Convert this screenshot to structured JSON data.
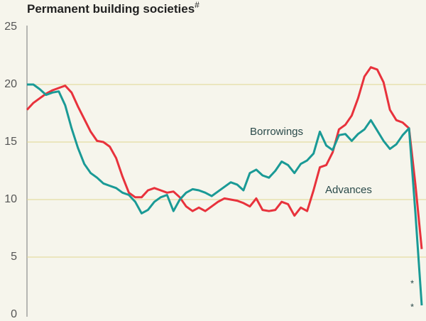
{
  "chart_data": {
    "type": "line",
    "title": "Permanent building societies",
    "title_note": "#",
    "x": [
      0,
      1,
      2,
      3,
      4,
      5,
      6,
      7,
      8,
      9,
      10,
      11,
      12,
      13,
      14,
      15,
      16,
      17,
      18,
      19,
      20,
      21,
      22,
      23,
      24,
      25,
      26,
      27,
      28,
      29,
      30,
      31,
      32,
      33,
      34,
      35,
      36,
      37,
      38,
      39,
      40,
      41,
      42,
      43,
      44,
      45,
      46,
      47,
      48,
      49,
      50,
      51,
      52,
      53,
      54,
      55,
      56,
      57,
      58,
      59,
      60,
      61,
      62
    ],
    "series": [
      {
        "name": "Borrowings",
        "color": "#1a9a96",
        "values": [
          20,
          20,
          19.6,
          19.1,
          19.3,
          19.4,
          18.2,
          16.2,
          14.5,
          13.1,
          12.3,
          11.9,
          11.4,
          11.2,
          11.0,
          10.6,
          10.4,
          9.8,
          8.8,
          9.1,
          9.8,
          10.2,
          10.4,
          9.0,
          10.0,
          10.6,
          10.9,
          10.8,
          10.6,
          10.3,
          10.7,
          11.1,
          11.5,
          11.3,
          10.8,
          12.3,
          12.6,
          12.1,
          11.9,
          12.5,
          13.3,
          13.0,
          12.3,
          13.1,
          13.4,
          14.0,
          15.9,
          14.7,
          14.3,
          15.6,
          15.7,
          15.1,
          15.7,
          16.1,
          16.9,
          16.0,
          15.1,
          14.4,
          14.8,
          15.6,
          16.2,
          8.8,
          0.8
        ]
      },
      {
        "name": "Advances",
        "color": "#e8323c",
        "values": [
          17.8,
          18.4,
          18.8,
          19.2,
          19.5,
          19.7,
          19.9,
          19.3,
          18.1,
          17.0,
          15.9,
          15.1,
          15.0,
          14.6,
          13.6,
          12.0,
          10.6,
          10.2,
          10.2,
          10.8,
          11.0,
          10.8,
          10.6,
          10.7,
          10.2,
          9.4,
          9.0,
          9.3,
          9.0,
          9.4,
          9.8,
          10.1,
          10.0,
          9.9,
          9.7,
          9.4,
          10.1,
          9.1,
          9.0,
          9.1,
          9.8,
          9.6,
          8.6,
          9.3,
          9.0,
          10.8,
          12.8,
          13.0,
          14.1,
          16.1,
          16.5,
          17.3,
          18.8,
          20.7,
          21.5,
          21.3,
          20.2,
          17.8,
          16.9,
          16.7,
          16.2,
          11.3,
          5.7
        ]
      }
    ],
    "annotations": [
      "*",
      "*"
    ],
    "xlim": [
      0,
      63
    ],
    "ylim": [
      0,
      25
    ],
    "yticks": [
      0,
      5,
      10,
      15,
      20,
      25
    ],
    "grid": true
  }
}
